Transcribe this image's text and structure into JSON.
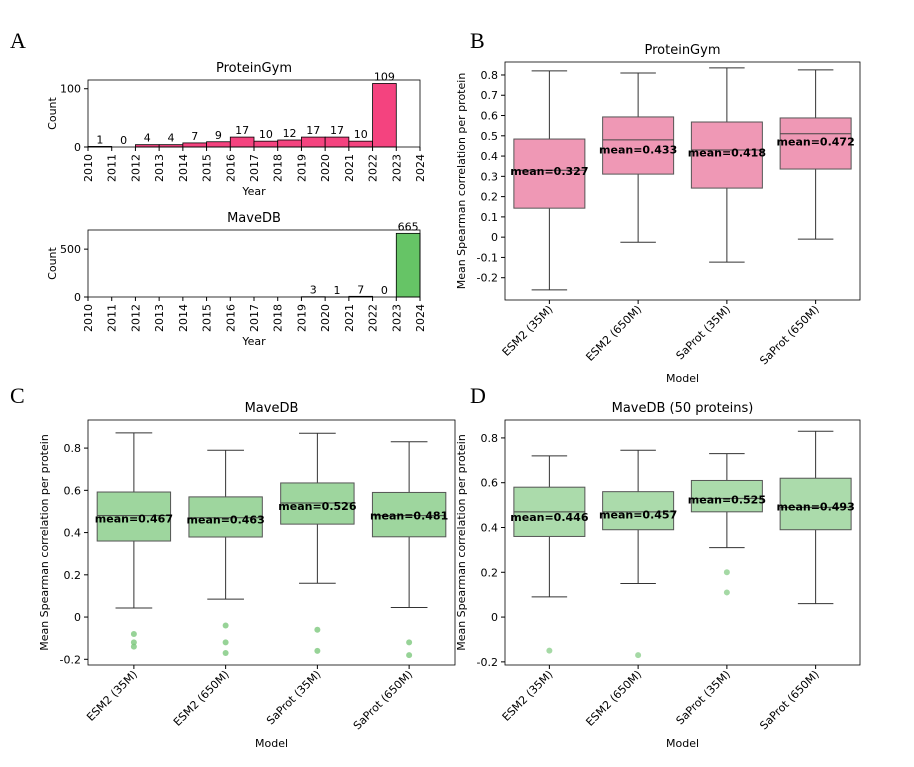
{
  "chart_data": [
    {
      "type": "histogram",
      "panel": "A",
      "title": "ProteinGym",
      "xlabel": "Year",
      "ylabel": "Count",
      "color": "#f4437f",
      "bins": [
        2010,
        2011,
        2012,
        2013,
        2014,
        2015,
        2016,
        2017,
        2018,
        2019,
        2020,
        2021,
        2022,
        2023
      ],
      "counts": [
        1,
        0,
        4,
        4,
        7,
        9,
        17,
        10,
        12,
        17,
        17,
        10,
        109
      ],
      "xlim": [
        2010,
        2024
      ],
      "xticks": [
        2010,
        2011,
        2012,
        2013,
        2014,
        2015,
        2016,
        2017,
        2018,
        2019,
        2020,
        2021,
        2022,
        2023,
        2024
      ],
      "ylim": [
        0,
        115
      ],
      "yticks": [
        0,
        100
      ]
    },
    {
      "type": "histogram",
      "title": "MaveDB",
      "xlabel": "Year",
      "ylabel": "Count",
      "color": "#66c466",
      "bins": [
        2019,
        2020,
        2021,
        2022,
        2023,
        2024
      ],
      "counts": [
        3,
        1,
        7,
        0,
        665
      ],
      "xlim": [
        2010,
        2024
      ],
      "xticks": [
        2010,
        2011,
        2012,
        2013,
        2014,
        2015,
        2016,
        2017,
        2018,
        2019,
        2020,
        2021,
        2022,
        2023,
        2024
      ],
      "ylim": [
        0,
        700
      ],
      "yticks": [
        0,
        500
      ]
    },
    {
      "type": "box",
      "panel": "B",
      "title": "ProteinGym",
      "xlabel": "Model",
      "ylabel": "Mean Spearman correlation per protein",
      "color": "#e9769c",
      "categories": [
        "ESM2 (35M)",
        "ESM2 (650M)",
        "SaProt (35M)",
        "SaProt (650M)"
      ],
      "whisker_low": [
        -0.26,
        -0.025,
        -0.123,
        -0.01
      ],
      "q1": [
        0.143,
        0.311,
        0.242,
        0.336
      ],
      "median": [
        0.33,
        0.48,
        0.43,
        0.51
      ],
      "q3": [
        0.484,
        0.593,
        0.568,
        0.588
      ],
      "whisker_high": [
        0.82,
        0.81,
        0.835,
        0.825
      ],
      "means": [
        0.327,
        0.433,
        0.418,
        0.472
      ],
      "value_labels": [
        "mean=0.327",
        "mean=0.433",
        "mean=0.418",
        "mean=0.472"
      ],
      "ylim": [
        -0.31,
        0.864
      ],
      "yticks": [
        -0.2,
        -0.1,
        0.0,
        0.1,
        0.2,
        0.3,
        0.4,
        0.5,
        0.6,
        0.7,
        0.8
      ]
    },
    {
      "type": "box",
      "panel": "C",
      "title": "MaveDB",
      "xlabel": "Model",
      "ylabel": "Mean Spearman correlation per protein",
      "color": "#7dc87d",
      "categories": [
        "ESM2 (35M)",
        "ESM2 (650M)",
        "SaProt (35M)",
        "SaProt (650M)"
      ],
      "whisker_low": [
        0.043,
        0.085,
        0.16,
        0.045
      ],
      "q1": [
        0.36,
        0.379,
        0.44,
        0.38
      ],
      "median": [
        0.48,
        0.47,
        0.54,
        0.48
      ],
      "q3": [
        0.592,
        0.569,
        0.635,
        0.59
      ],
      "whisker_high": [
        0.872,
        0.79,
        0.87,
        0.83
      ],
      "means": [
        0.467,
        0.463,
        0.526,
        0.481
      ],
      "value_labels": [
        "mean=0.467",
        "mean=0.463",
        "mean=0.526",
        "mean=0.481"
      ],
      "outliers": [
        [
          -0.14,
          -0.12,
          -0.08
        ],
        [
          -0.17,
          -0.12,
          -0.04
        ],
        [
          -0.16,
          -0.06
        ],
        [
          -0.18,
          -0.12
        ]
      ],
      "ylim": [
        -0.227,
        0.933
      ],
      "yticks": [
        -0.2,
        0.0,
        0.2,
        0.4,
        0.6,
        0.8
      ]
    },
    {
      "type": "box",
      "panel": "D",
      "title": "MaveDB (50 proteins)",
      "xlabel": "Model",
      "ylabel": "Mean Spearman correlation per protein",
      "color": "#8fcf8f",
      "categories": [
        "ESM2 (35M)",
        "ESM2 (650M)",
        "SaProt (35M)",
        "SaProt (650M)"
      ],
      "whisker_low": [
        0.09,
        0.15,
        0.31,
        0.06
      ],
      "q1": [
        0.36,
        0.39,
        0.47,
        0.39
      ],
      "median": [
        0.47,
        0.47,
        0.53,
        0.49
      ],
      "q3": [
        0.58,
        0.56,
        0.61,
        0.62
      ],
      "whisker_high": [
        0.72,
        0.745,
        0.73,
        0.83
      ],
      "means": [
        0.446,
        0.457,
        0.525,
        0.493
      ],
      "value_labels": [
        "mean=0.446",
        "mean=0.457",
        "mean=0.525",
        "mean=0.493"
      ],
      "outliers": [
        [
          -0.15
        ],
        [
          -0.17
        ],
        [
          0.2,
          0.11
        ],
        []
      ],
      "ylim": [
        -0.214,
        0.88
      ],
      "yticks": [
        -0.2,
        0.0,
        0.2,
        0.4,
        0.6,
        0.8
      ]
    }
  ]
}
